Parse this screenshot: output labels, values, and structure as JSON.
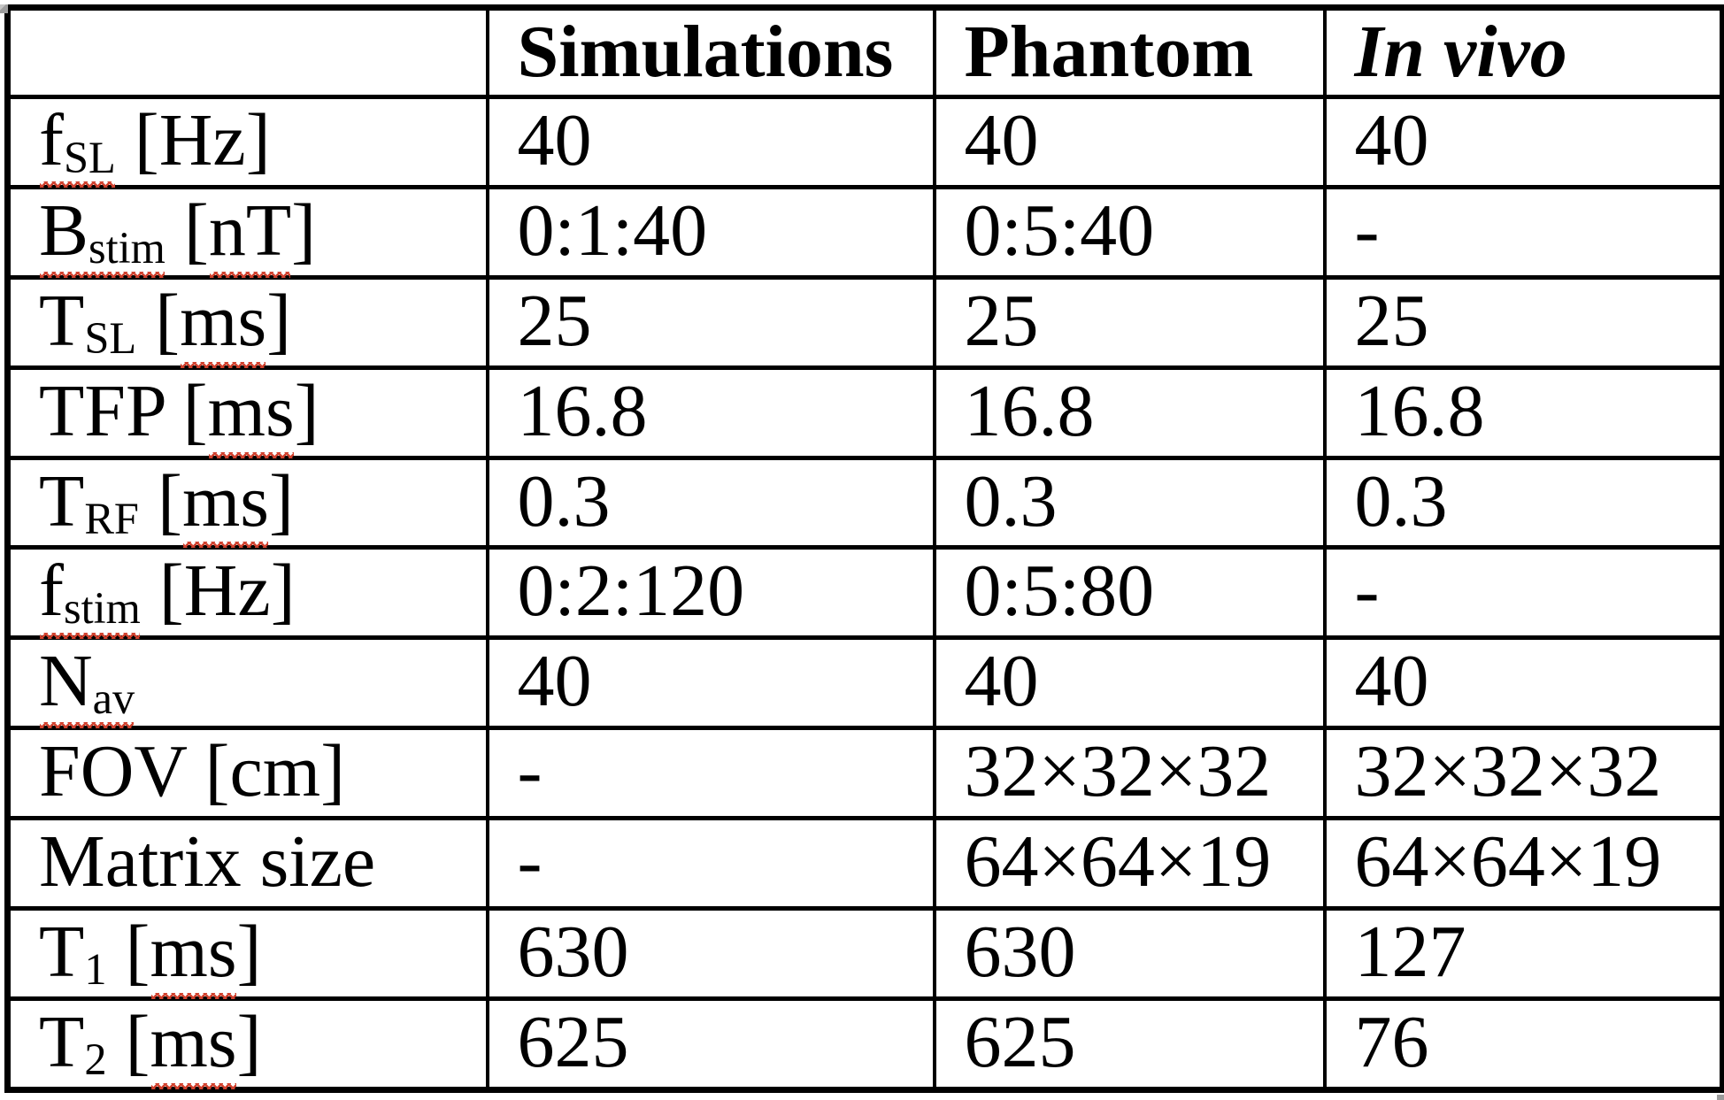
{
  "colors": {
    "text": "#000000",
    "border": "#000000",
    "squiggle": "#d1422f",
    "artifact": "#9c9c9c",
    "background": "#ffffff"
  },
  "table": {
    "columns": [
      {
        "label": "",
        "style": "plain"
      },
      {
        "label": "Simulations",
        "style": "bold"
      },
      {
        "label": "Phantom",
        "style": "bold"
      },
      {
        "label": "In vivo",
        "style": "bold-italic"
      }
    ],
    "value_column_keys": [
      "simulations",
      "phantom",
      "in-vivo"
    ],
    "rows": [
      {
        "name": "fsl-hz",
        "label_segments": [
          {
            "t": "f",
            "sq": true
          },
          {
            "t": "SL",
            "sub": true,
            "sq": true
          },
          {
            "t": " [Hz]"
          }
        ],
        "values": [
          "40",
          "40",
          "40"
        ]
      },
      {
        "name": "bstim-nt",
        "label_segments": [
          {
            "t": "B",
            "sq": true
          },
          {
            "t": "stim",
            "sub": true,
            "sq": true
          },
          {
            "t": " ["
          },
          {
            "t": "nT",
            "sq": true
          },
          {
            "t": "]"
          }
        ],
        "values": [
          "0:1:40",
          "0:5:40",
          "-"
        ]
      },
      {
        "name": "tsl-ms",
        "label_segments": [
          {
            "t": "T"
          },
          {
            "t": "SL",
            "sub": true
          },
          {
            "t": " ["
          },
          {
            "t": "ms",
            "sq": true
          },
          {
            "t": "]"
          }
        ],
        "values": [
          "25",
          "25",
          "25"
        ]
      },
      {
        "name": "tfp-ms",
        "label_segments": [
          {
            "t": "TFP ["
          },
          {
            "t": "ms",
            "sq": true
          },
          {
            "t": "]"
          }
        ],
        "values": [
          "16.8",
          "16.8",
          "16.8"
        ]
      },
      {
        "name": "trf-ms",
        "label_segments": [
          {
            "t": "T"
          },
          {
            "t": "RF",
            "sub": true
          },
          {
            "t": " ["
          },
          {
            "t": "ms",
            "sq": true
          },
          {
            "t": "]"
          }
        ],
        "values": [
          "0.3",
          "0.3",
          "0.3"
        ]
      },
      {
        "name": "fstim-hz",
        "label_segments": [
          {
            "t": "f",
            "sq": true
          },
          {
            "t": "stim",
            "sub": true,
            "sq": true
          },
          {
            "t": " [Hz]"
          }
        ],
        "values": [
          "0:2:120",
          "0:5:80",
          "-"
        ]
      },
      {
        "name": "nav",
        "label_segments": [
          {
            "t": "N",
            "sq": true
          },
          {
            "t": "av",
            "sub": true,
            "sq": true
          }
        ],
        "values": [
          "40",
          "40",
          "40"
        ]
      },
      {
        "name": "fov-cm",
        "label_segments": [
          {
            "t": "FOV [cm]"
          }
        ],
        "values": [
          "-",
          "32×32×32",
          "32×32×32"
        ]
      },
      {
        "name": "matrix-size",
        "label_segments": [
          {
            "t": "Matrix size"
          }
        ],
        "values": [
          "-",
          "64×64×19",
          "64×64×19"
        ]
      },
      {
        "name": "t1-ms",
        "label_segments": [
          {
            "t": "T"
          },
          {
            "t": "1",
            "sub": true
          },
          {
            "t": " ["
          },
          {
            "t": "ms",
            "sq": true
          },
          {
            "t": "]"
          }
        ],
        "values": [
          "630",
          "630",
          "127"
        ]
      },
      {
        "name": "t2-ms",
        "label_segments": [
          {
            "t": "T"
          },
          {
            "t": "2",
            "sub": true
          },
          {
            "t": " ["
          },
          {
            "t": "ms",
            "sq": true
          },
          {
            "t": "]"
          }
        ],
        "values": [
          "625",
          "625",
          "76"
        ]
      }
    ]
  }
}
